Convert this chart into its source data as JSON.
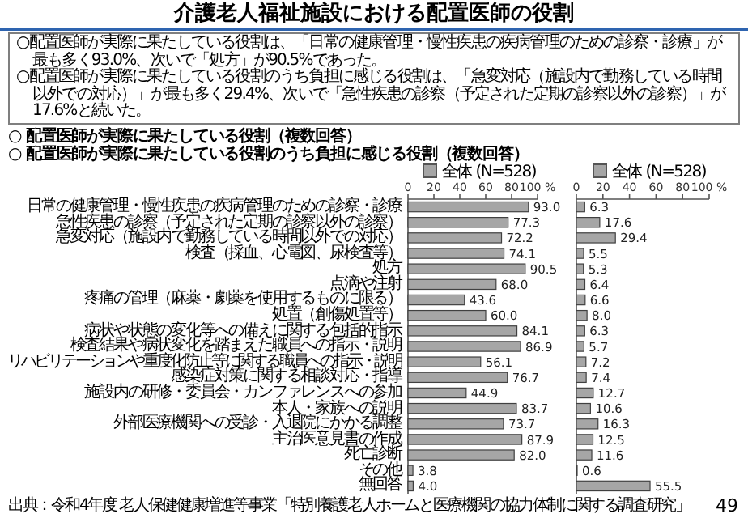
{
  "chart_data": [
    {
      "type": "other",
      "title": "介護老人福祉施設における配置医師の役割",
      "annotations": [
        "○配置医師が実際に果たしている役割は、「日常の健康管理・慢性疾患の疾病管理のための診察・診療」が最も多く93.0%、次いで「処方」が90.5%であった。",
        "○配置医師が実際に果たしている役割のうち負担に感じる役割は、「急変対応（施設内で勤務している時間以外での対応）」が最も多く29.4%、次いで「急性疾患の診察（予定された定期の診察以外の診察）」が17.6%と続いた。",
        "出典：令和4年度 老人保健健康増進等事業「特別養護老人ホームと医療機関の協力体制に関する調査研究」",
        "49"
      ]
    },
    {
      "type": "bar",
      "orientation": "horizontal",
      "title": "○ 配置医師が実際に果たしている役割（複数回答）",
      "categories": [
        "日常の健康管理・慢性疾患の疾病管理のための診察・診療",
        "急性疾患の診察（予定された定期の診察以外の診察）",
        "急変対応（施設内で勤務している時間以外での対応）",
        "検査（採血、心電図、尿検査等）",
        "処方",
        "点滴や注射",
        "疼痛の管理（麻薬・劇薬を使用するものに限る）",
        "処置（創傷処置等）",
        "病状や状態の変化等への備えに関する包括的指示",
        "検査結果や病状変化を踏まえた職員への指示・説明",
        "リハビリテーションや重度化防止等に関する職員への指示・説明",
        "感染症対策に関する相談対応・指導",
        "施設内の研修・委員会・カンファレンスへの参加",
        "本人・家族への説明",
        "外部医療機関への受診・入退院にかかる調整",
        "主治医意見書の作成",
        "死亡診断",
        "その他",
        "無回答"
      ],
      "series": [
        {
          "name": "全体 (N=528)",
          "color": "#a6a6a6",
          "values": [
            93.0,
            77.3,
            72.2,
            74.1,
            90.5,
            68.0,
            43.6,
            60.0,
            84.1,
            86.9,
            56.1,
            76.7,
            44.9,
            83.7,
            73.7,
            87.9,
            82.0,
            3.8,
            4.0
          ],
          "value_labels": [
            "93.0",
            "77.3",
            "72.2",
            "74.1",
            "90.5",
            "68.0",
            "43.6",
            "60.0",
            "84.1",
            "86.9",
            "56.1",
            "76.7",
            "44.9",
            "83.7",
            "73.7",
            "87.9",
            "82.0",
            "3.8",
            "4.0"
          ]
        }
      ],
      "xlim": [
        0,
        100
      ],
      "xticks": [
        0,
        20,
        40,
        60,
        80,
        {
          "value": 100,
          "label": "100 %"
        }
      ],
      "legend": "top"
    },
    {
      "type": "bar",
      "orientation": "horizontal",
      "title": "○ 配置医師が実際に果たしている役割のうち負担に感じる役割（複数回答）",
      "categories": [
        null,
        null,
        null,
        null,
        null,
        null,
        null,
        null,
        null,
        null,
        null,
        null,
        null,
        null,
        null,
        null,
        null,
        null,
        null
      ],
      "series": [
        {
          "name": "全体 (N=528)",
          "color": "#a6a6a6",
          "values": [
            6.3,
            17.6,
            29.4,
            5.5,
            5.3,
            6.4,
            6.6,
            8.0,
            6.3,
            5.7,
            7.2,
            7.4,
            12.7,
            10.6,
            16.3,
            12.5,
            11.6,
            0.6,
            55.5
          ],
          "value_labels": [
            "6.3",
            "17.6",
            "29.4",
            "5.5",
            "5.3",
            "6.4",
            "6.6",
            "8.0",
            "6.3",
            "5.7",
            "7.2",
            "7.4",
            "12.7",
            "10.6",
            "16.3",
            "12.5",
            "11.6",
            "0.6",
            "55.5"
          ]
        }
      ],
      "xlim": [
        0,
        100
      ],
      "xticks": [
        0,
        20,
        40,
        60,
        80,
        {
          "value": 100,
          "label": "100 %"
        }
      ],
      "legend": "top"
    }
  ]
}
